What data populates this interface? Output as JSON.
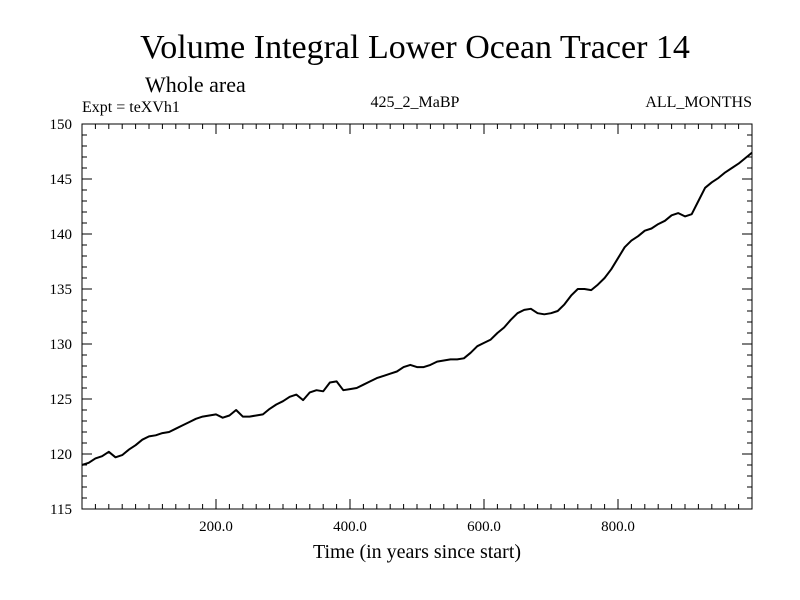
{
  "chart_data": {
    "type": "line",
    "title": "Volume Integral Lower Ocean Tracer 14",
    "subtitle": "Whole area",
    "expt_label": "Expt = teXVh1",
    "center_label": "425_2_MaBP",
    "right_label": "ALL_MONTHS",
    "xlabel": "Time (in years since start)",
    "ylabel": "",
    "xlim": [
      0,
      1000
    ],
    "ylim": [
      115,
      150
    ],
    "x_ticks": [
      200,
      400,
      600,
      800
    ],
    "x_tick_labels": [
      "200.0",
      "400.0",
      "600.0",
      "800.0"
    ],
    "y_ticks": [
      115,
      120,
      125,
      130,
      135,
      140,
      145,
      150
    ],
    "y_tick_labels": [
      "115",
      "120",
      "125",
      "130",
      "135",
      "140",
      "145",
      "150"
    ],
    "grid": false,
    "series": [
      {
        "name": "teXVh1",
        "color": "#000000",
        "x": [
          0,
          10,
          20,
          30,
          40,
          50,
          60,
          70,
          80,
          90,
          100,
          110,
          120,
          130,
          140,
          150,
          160,
          170,
          180,
          190,
          200,
          210,
          220,
          230,
          240,
          250,
          260,
          270,
          280,
          290,
          300,
          310,
          320,
          330,
          340,
          350,
          360,
          370,
          380,
          390,
          400,
          410,
          420,
          430,
          440,
          450,
          460,
          470,
          480,
          490,
          500,
          510,
          520,
          530,
          540,
          550,
          560,
          570,
          580,
          590,
          600,
          610,
          620,
          630,
          640,
          650,
          660,
          670,
          680,
          690,
          700,
          710,
          720,
          730,
          740,
          750,
          760,
          770,
          780,
          790,
          800,
          810,
          820,
          830,
          840,
          850,
          860,
          870,
          880,
          890,
          900,
          910,
          920,
          930,
          940,
          950,
          960,
          970,
          980,
          990,
          1000
        ],
        "values": [
          119.0,
          119.2,
          119.6,
          119.8,
          120.2,
          119.7,
          119.9,
          120.4,
          120.8,
          121.3,
          121.6,
          121.7,
          121.9,
          122.0,
          122.3,
          122.6,
          122.9,
          123.2,
          123.4,
          123.5,
          123.6,
          123.3,
          123.5,
          124.0,
          123.4,
          123.4,
          123.5,
          123.6,
          124.1,
          124.5,
          124.8,
          125.2,
          125.4,
          124.9,
          125.6,
          125.8,
          125.7,
          126.5,
          126.6,
          125.8,
          125.9,
          126.0,
          126.3,
          126.6,
          126.9,
          127.1,
          127.3,
          127.5,
          127.9,
          128.1,
          127.9,
          127.9,
          128.1,
          128.4,
          128.5,
          128.6,
          128.6,
          128.7,
          129.2,
          129.8,
          130.1,
          130.4,
          131.0,
          131.5,
          132.2,
          132.8,
          133.1,
          133.2,
          132.8,
          132.7,
          132.8,
          133.0,
          133.6,
          134.4,
          135.0,
          135.0,
          134.9,
          135.4,
          136.0,
          136.8,
          137.8,
          138.8,
          139.4,
          139.8,
          140.3,
          140.5,
          140.9,
          141.2,
          141.7,
          141.9,
          141.6,
          141.8,
          143.0,
          144.2,
          144.7,
          145.1,
          145.6,
          146.0,
          146.4,
          146.9,
          147.4
        ]
      }
    ]
  }
}
